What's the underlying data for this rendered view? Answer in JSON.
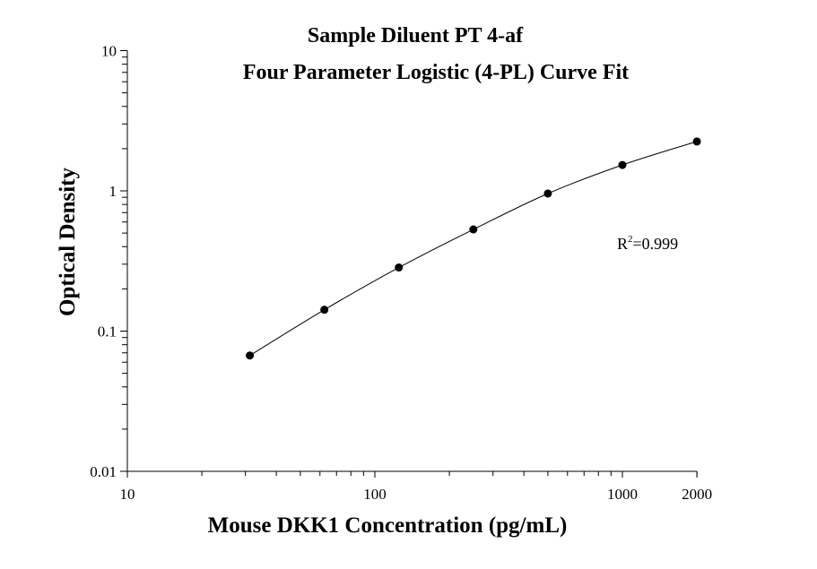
{
  "chart_data": {
    "type": "scatter",
    "title": "Sample Diluent PT 4-af",
    "subtitle": "Four Parameter Logistic (4-PL) Curve Fit",
    "xlabel": "Mouse DKK1 Concentration (pg/mL)",
    "ylabel": "Optical Density",
    "x_scale": "log",
    "y_scale": "log",
    "xlim": [
      10,
      2000
    ],
    "ylim": [
      0.01,
      10
    ],
    "x_ticks": [
      "10",
      "100",
      "1000",
      "2000"
    ],
    "y_ticks": [
      "0.01",
      "0.1",
      "1",
      "10"
    ],
    "grid": false,
    "x": [
      31.25,
      62.5,
      125,
      250,
      500,
      1000,
      2000
    ],
    "y": [
      0.067,
      0.142,
      0.284,
      0.531,
      0.957,
      1.53,
      2.25
    ],
    "fit": "4-PL curve",
    "annotation": {
      "r2_label": "R",
      "r2_sup": "2",
      "r2_value": "=0.999"
    },
    "colors": {
      "points": "#000000",
      "line": "#000000"
    }
  }
}
